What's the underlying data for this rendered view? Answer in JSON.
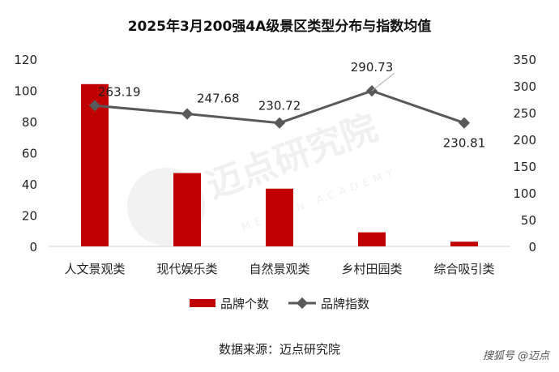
{
  "chart_data": {
    "type": "bar",
    "title": "2025年3月200强4A级景区类型分布与指数均值",
    "categories": [
      "人文景观类",
      "现代娱乐类",
      "自然景观类",
      "乡村田园类",
      "综合吸引类"
    ],
    "series": [
      {
        "name": "品牌个数",
        "type": "bar",
        "axis": "left",
        "color": "#c00000",
        "values": [
          104,
          47,
          37,
          9,
          3
        ]
      },
      {
        "name": "品牌指数",
        "type": "line",
        "axis": "right",
        "color": "#595959",
        "values": [
          263.19,
          247.68,
          230.72,
          290.73,
          230.81
        ]
      }
    ],
    "y_left": {
      "min": 0,
      "max": 120,
      "ticks": [
        0,
        20,
        40,
        60,
        80,
        100,
        120
      ]
    },
    "y_right": {
      "min": 0,
      "max": 350,
      "ticks": [
        0,
        50,
        100,
        150,
        200,
        250,
        300,
        350
      ]
    },
    "data_labels": [
      "263.19",
      "247.68",
      "230.72",
      "290.73",
      "230.81"
    ],
    "legend": {
      "position": "bottom",
      "items": [
        "品牌个数",
        "品牌指数"
      ]
    },
    "grid": false
  },
  "source": "数据来源：迈点研究院",
  "watermark": {
    "text": "迈点研究院",
    "subtext": "MEADIN ACADEMY"
  },
  "credit": "搜狐号 @迈点"
}
